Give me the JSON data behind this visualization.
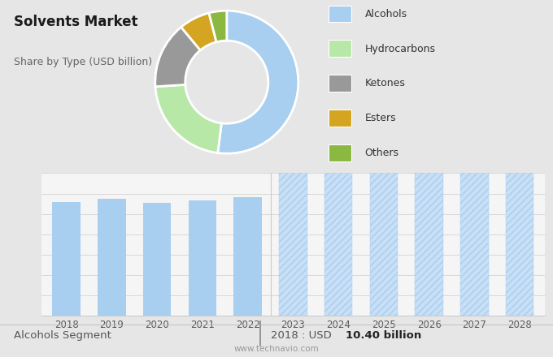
{
  "title": "Solvents Market",
  "subtitle": "Share by Type (USD billion)",
  "pie_labels": [
    "Alcohols",
    "Hydrocarbons",
    "Ketones",
    "Esters",
    "Others"
  ],
  "pie_values": [
    52,
    22,
    15,
    7,
    4
  ],
  "pie_colors": [
    "#a8cef0",
    "#b8e8a8",
    "#999999",
    "#d4a520",
    "#8ab840"
  ],
  "pie_startangle": 90,
  "bar_years_hist": [
    2018,
    2019,
    2020,
    2021,
    2022
  ],
  "bar_values_hist": [
    10.4,
    10.65,
    10.3,
    10.55,
    10.85
  ],
  "bar_years_fore": [
    2023,
    2024,
    2025,
    2026,
    2027,
    2028
  ],
  "bar_color_hist": "#a8cef0",
  "bar_color_fore": "#c8dff5",
  "forecast_hatch": "////",
  "bottom_label_left": "Alcohols Segment",
  "bottom_label_right_normal": "2018 : USD ",
  "bottom_label_right_bold": "10.40 billion",
  "website": "www.technavio.com",
  "top_bg_color": "#e6e6e6",
  "bottom_bg_color": "#f5f5f5",
  "bar_ylim": [
    0,
    13
  ],
  "legend_labels": [
    "Alcohols",
    "Hydrocarbons",
    "Ketones",
    "Esters",
    "Others"
  ],
  "legend_colors": [
    "#a8cef0",
    "#b8e8a8",
    "#999999",
    "#d4a520",
    "#8ab840"
  ],
  "grid_color": "#cccccc",
  "hatch_color": "#a8cef0"
}
